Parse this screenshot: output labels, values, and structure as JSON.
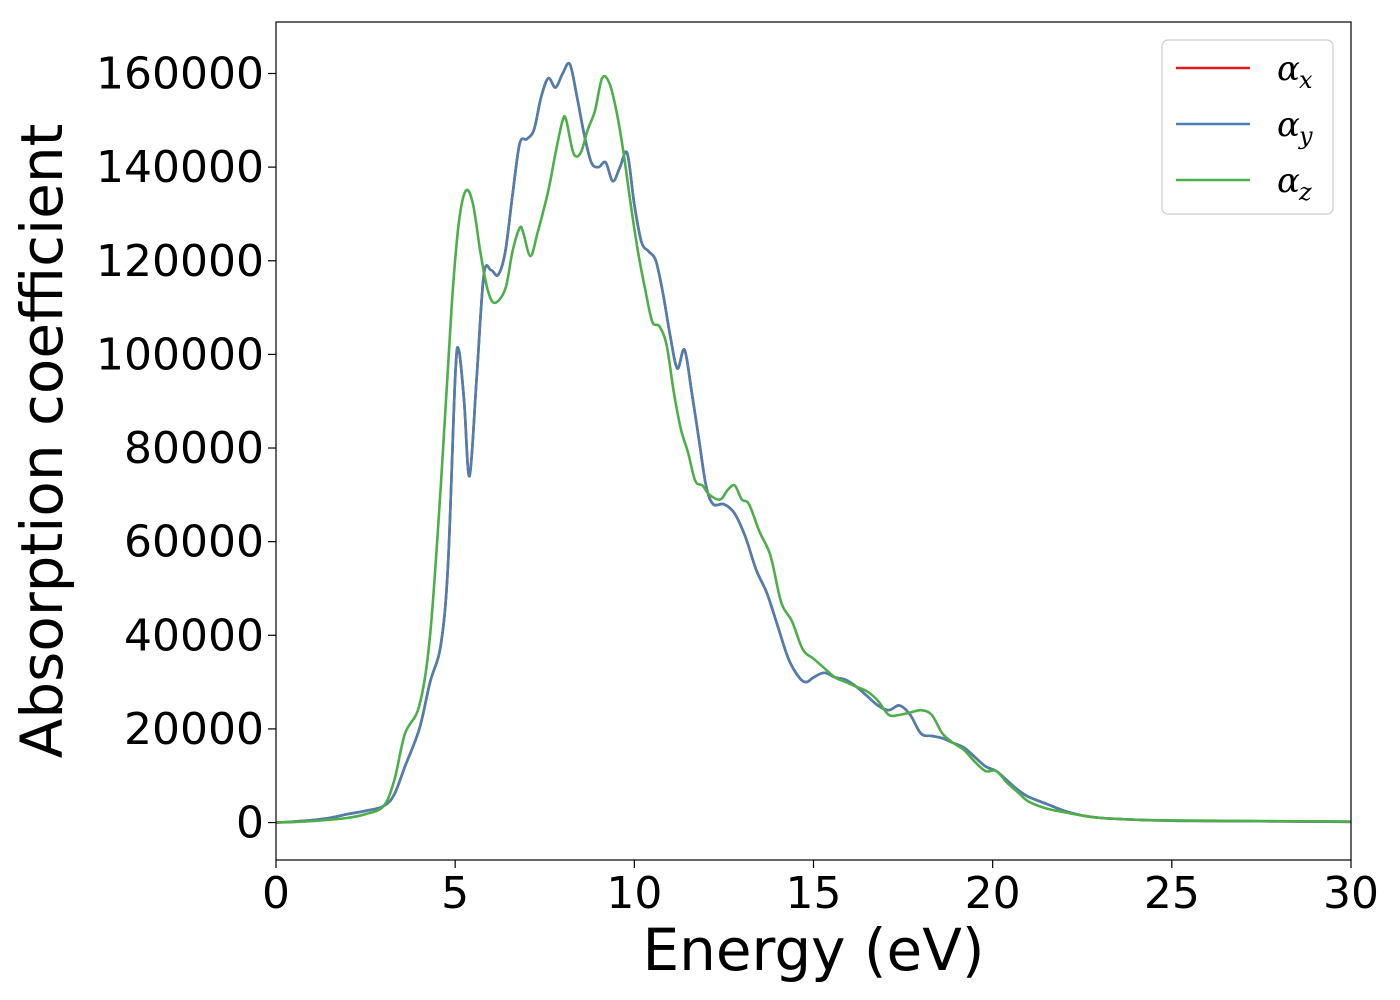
{
  "chart_data": {
    "type": "line",
    "xlabel": "Energy (eV)",
    "ylabel": "Absorption coefficient",
    "xlim": [
      0,
      30
    ],
    "ylim": [
      -8000,
      171000
    ],
    "xticks": [
      0,
      5,
      10,
      15,
      20,
      25,
      30
    ],
    "yticks": [
      0,
      20000,
      40000,
      60000,
      80000,
      100000,
      120000,
      140000,
      160000
    ],
    "grid": false,
    "legend_position": "top-right",
    "series": [
      {
        "name": "α_x",
        "legend_base": "α",
        "legend_sub": "x",
        "color": "#e41a1c",
        "x": [
          0,
          0.5,
          1,
          1.5,
          2,
          2.5,
          3,
          3.3,
          3.6,
          4,
          4.3,
          4.6,
          4.8,
          5.0,
          5.1,
          5.25,
          5.4,
          5.6,
          5.8,
          6.0,
          6.2,
          6.4,
          6.6,
          6.8,
          7.0,
          7.2,
          7.4,
          7.6,
          7.8,
          8.0,
          8.2,
          8.4,
          8.6,
          8.8,
          9.0,
          9.2,
          9.4,
          9.6,
          9.8,
          10.0,
          10.2,
          10.4,
          10.6,
          10.8,
          11.0,
          11.2,
          11.4,
          11.6,
          11.8,
          12.0,
          12.2,
          12.5,
          12.8,
          13.1,
          13.4,
          13.7,
          14.0,
          14.3,
          14.6,
          14.8,
          15.0,
          15.3,
          15.6,
          15.9,
          16.2,
          16.5,
          16.8,
          17.1,
          17.4,
          17.7,
          18.0,
          18.3,
          18.6,
          18.9,
          19.2,
          19.5,
          19.8,
          20.1,
          20.4,
          20.7,
          21.0,
          21.5,
          22,
          22.5,
          23,
          24,
          25,
          26,
          27,
          28,
          29,
          30
        ],
        "y": [
          0,
          200,
          500,
          1000,
          1800,
          2500,
          3500,
          6000,
          12000,
          20000,
          30000,
          38000,
          55000,
          95000,
          101000,
          90000,
          74000,
          95000,
          117000,
          118000,
          117000,
          122000,
          134000,
          145000,
          146000,
          148000,
          155000,
          159000,
          157000,
          160000,
          162000,
          155000,
          147000,
          141000,
          140000,
          141000,
          137000,
          140000,
          143000,
          132000,
          124000,
          122000,
          120000,
          113000,
          104000,
          97000,
          101000,
          92000,
          82000,
          72000,
          68000,
          68000,
          66000,
          61000,
          54000,
          49000,
          42000,
          35000,
          31000,
          30000,
          31000,
          32000,
          31000,
          30500,
          29000,
          27000,
          25000,
          24000,
          25000,
          23000,
          19000,
          18500,
          18000,
          17000,
          16000,
          14000,
          12000,
          11000,
          9000,
          7000,
          5500,
          4000,
          2500,
          1500,
          1000,
          600,
          400,
          350,
          300,
          250,
          200,
          150
        ]
      },
      {
        "name": "α_y",
        "legend_base": "α",
        "legend_sub": "y",
        "color": "#4d7faf",
        "x": [
          0,
          0.5,
          1,
          1.5,
          2,
          2.5,
          3,
          3.3,
          3.6,
          4,
          4.3,
          4.6,
          4.8,
          5.0,
          5.1,
          5.25,
          5.4,
          5.6,
          5.8,
          6.0,
          6.2,
          6.4,
          6.6,
          6.8,
          7.0,
          7.2,
          7.4,
          7.6,
          7.8,
          8.0,
          8.2,
          8.4,
          8.6,
          8.8,
          9.0,
          9.2,
          9.4,
          9.6,
          9.8,
          10.0,
          10.2,
          10.4,
          10.6,
          10.8,
          11.0,
          11.2,
          11.4,
          11.6,
          11.8,
          12.0,
          12.2,
          12.5,
          12.8,
          13.1,
          13.4,
          13.7,
          14.0,
          14.3,
          14.6,
          14.8,
          15.0,
          15.3,
          15.6,
          15.9,
          16.2,
          16.5,
          16.8,
          17.1,
          17.4,
          17.7,
          18.0,
          18.3,
          18.6,
          18.9,
          19.2,
          19.5,
          19.8,
          20.1,
          20.4,
          20.7,
          21.0,
          21.5,
          22,
          22.5,
          23,
          24,
          25,
          26,
          27,
          28,
          29,
          30
        ],
        "y": [
          0,
          200,
          500,
          1000,
          1800,
          2500,
          3500,
          6000,
          12000,
          20000,
          30000,
          38000,
          55000,
          95000,
          101000,
          90000,
          74000,
          95000,
          117000,
          118000,
          117000,
          122000,
          134000,
          145000,
          146000,
          148000,
          155000,
          159000,
          157000,
          160000,
          162000,
          155000,
          147000,
          141000,
          140000,
          141000,
          137000,
          140000,
          143000,
          132000,
          124000,
          122000,
          120000,
          113000,
          104000,
          97000,
          101000,
          92000,
          82000,
          72000,
          68000,
          68000,
          66000,
          61000,
          54000,
          49000,
          42000,
          35000,
          31000,
          30000,
          31000,
          32000,
          31000,
          30500,
          29000,
          27000,
          25000,
          24000,
          25000,
          23000,
          19000,
          18500,
          18000,
          17000,
          16000,
          14000,
          12000,
          11000,
          9000,
          7000,
          5500,
          4000,
          2500,
          1500,
          1000,
          600,
          400,
          350,
          300,
          250,
          200,
          150
        ]
      },
      {
        "name": "α_z",
        "legend_base": "α",
        "legend_sub": "z",
        "color": "#4daf4a",
        "x": [
          0,
          0.5,
          1,
          1.5,
          2,
          2.5,
          3,
          3.3,
          3.6,
          4.0,
          4.3,
          4.6,
          4.9,
          5.1,
          5.3,
          5.5,
          5.7,
          5.9,
          6.1,
          6.4,
          6.6,
          6.8,
          6.9,
          7.1,
          7.3,
          7.6,
          7.8,
          8.0,
          8.1,
          8.3,
          8.5,
          8.7,
          8.9,
          9.1,
          9.3,
          9.5,
          9.7,
          9.9,
          10.1,
          10.3,
          10.5,
          10.7,
          10.9,
          11.1,
          11.3,
          11.5,
          11.7,
          11.9,
          12.1,
          12.4,
          12.6,
          12.8,
          13.0,
          13.2,
          13.5,
          13.8,
          14.1,
          14.4,
          14.7,
          15.0,
          15.3,
          15.6,
          15.9,
          16.2,
          16.5,
          16.8,
          17.1,
          17.4,
          17.7,
          18.0,
          18.3,
          18.6,
          18.9,
          19.2,
          19.5,
          19.8,
          20.1,
          20.4,
          20.7,
          21.0,
          21.5,
          22,
          22.5,
          23,
          24,
          25,
          26,
          27,
          28,
          29,
          30
        ],
        "y": [
          0,
          100,
          300,
          600,
          1000,
          1800,
          3500,
          9000,
          19000,
          25000,
          40000,
          72000,
          110000,
          128000,
          135000,
          132000,
          122000,
          114000,
          111000,
          114000,
          122000,
          127000,
          126000,
          121000,
          126000,
          135000,
          143000,
          150000,
          150000,
          143000,
          143000,
          148000,
          152000,
          159000,
          158000,
          152000,
          143000,
          132000,
          122000,
          114000,
          107000,
          106000,
          102000,
          92000,
          84000,
          79000,
          73000,
          72000,
          70000,
          69000,
          71000,
          72000,
          69000,
          68000,
          62000,
          57000,
          47000,
          43000,
          37000,
          35000,
          33000,
          31000,
          30000,
          29000,
          28000,
          26000,
          23000,
          23000,
          23500,
          24000,
          23000,
          19000,
          17000,
          15500,
          13000,
          11000,
          11000,
          8500,
          6500,
          4500,
          3000,
          2200,
          1500,
          1000,
          600,
          450,
          400,
          350,
          300,
          250,
          200
        ]
      }
    ]
  }
}
